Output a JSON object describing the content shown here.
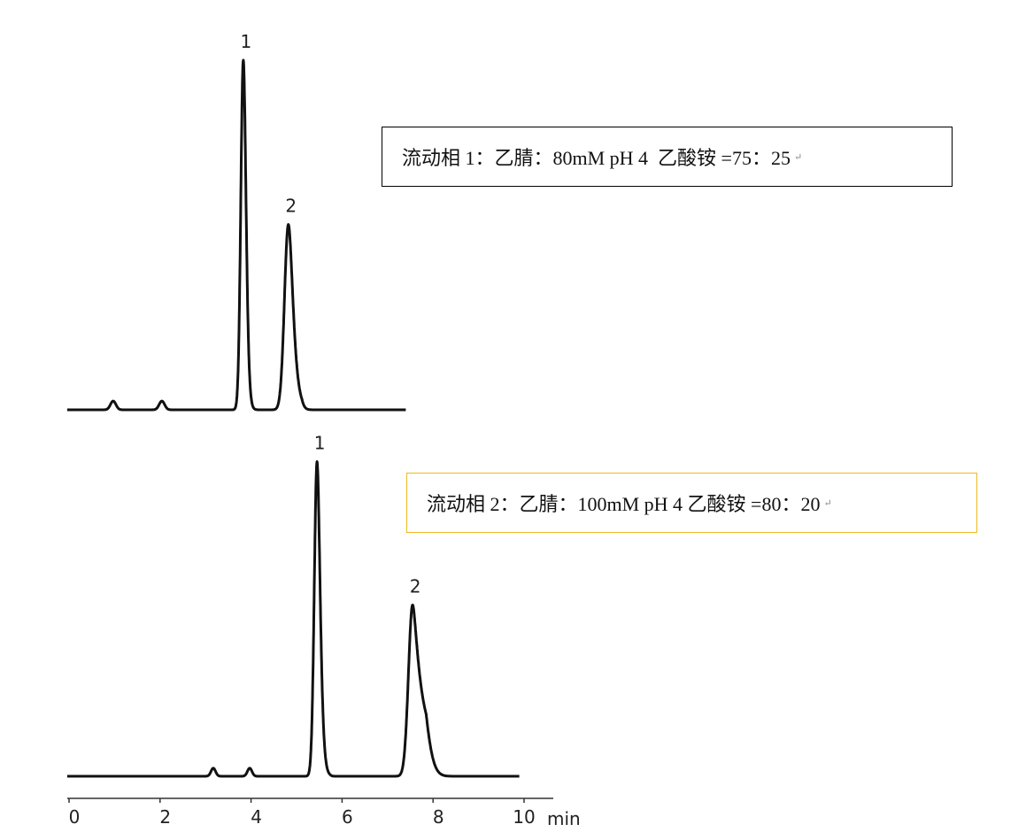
{
  "chart_data": [
    {
      "type": "line",
      "title": "",
      "annotation": "流动相 1：乙腈：80mM pH 4  乙酸铵 =75：25",
      "xlabel": "min",
      "xlim": [
        0,
        10
      ],
      "x_range_shown": [
        0,
        7.4
      ],
      "grid": false,
      "peaks": [
        {
          "label": "",
          "rt": 0.97,
          "height": 2.5
        },
        {
          "label": "",
          "rt": 2.04,
          "height": 2.5
        },
        {
          "label": "1",
          "rt": 3.83,
          "height": 100
        },
        {
          "label": "2",
          "rt": 4.82,
          "height": 53
        }
      ]
    },
    {
      "type": "line",
      "title": "",
      "annotation": "流动相 2：乙腈：100mM pH 4 乙酸铵 =80：20",
      "xlabel": "min",
      "xlim": [
        0,
        10
      ],
      "x_range_shown": [
        0,
        9.9
      ],
      "xticks": [
        "0",
        "2",
        "4",
        "6",
        "8",
        "10"
      ],
      "grid": false,
      "peaks": [
        {
          "label": "",
          "rt": 3.17,
          "height": 2.3
        },
        {
          "label": "",
          "rt": 3.97,
          "height": 2.3
        },
        {
          "label": "1",
          "rt": 5.45,
          "height": 90
        },
        {
          "label": "2",
          "rt": 7.55,
          "height": 49
        }
      ]
    }
  ],
  "colors": {
    "trace": "#111111",
    "box1_border": "#000000",
    "box2_border": "#f0b820"
  }
}
